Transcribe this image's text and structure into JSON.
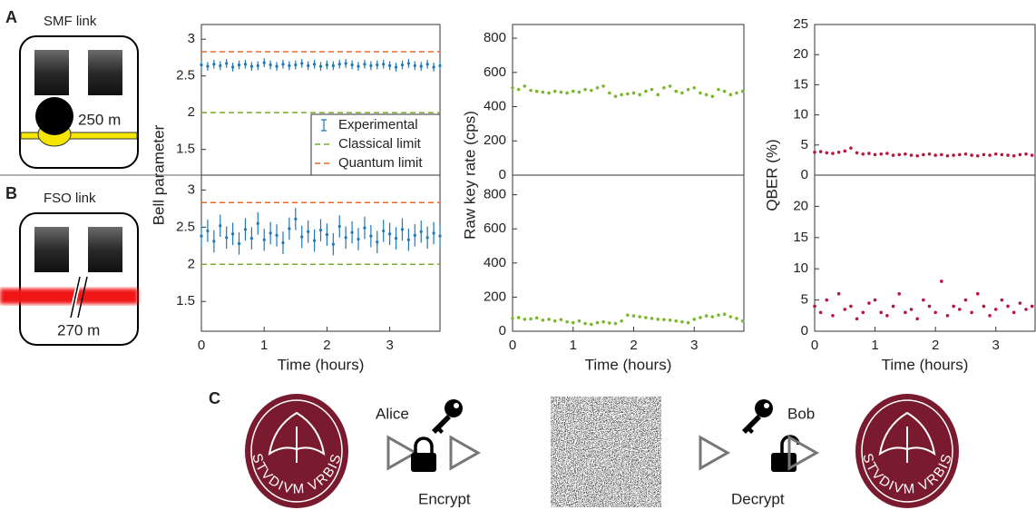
{
  "panels": {
    "A": {
      "letter": "A",
      "title": "SMF link",
      "distance": "250 m"
    },
    "B": {
      "letter": "B",
      "title": "FSO link",
      "distance": "270 m"
    },
    "C": {
      "letter": "C",
      "alice": "Alice",
      "bob": "Bob",
      "encrypt": "Encrypt",
      "decrypt": "Decrypt",
      "emblem_motto": "STVDIVM VRBIS"
    }
  },
  "chart_data": [
    {
      "type": "errorbar",
      "ylabel": "Bell parameter",
      "xlim": [
        0,
        3.8
      ],
      "ylim": [
        1.15,
        3.2
      ],
      "yticks": [
        1.5,
        2,
        2.5,
        3
      ],
      "legend": "lower right",
      "series": [
        {
          "name": "Experimental",
          "color": "#1f77b4",
          "x": [
            0,
            0.1,
            0.2,
            0.3,
            0.4,
            0.5,
            0.6,
            0.7,
            0.8,
            0.9,
            1,
            1.1,
            1.2,
            1.3,
            1.4,
            1.5,
            1.6,
            1.7,
            1.8,
            1.9,
            2,
            2.1,
            2.2,
            2.3,
            2.4,
            2.5,
            2.6,
            2.7,
            2.8,
            2.9,
            3,
            3.1,
            3.2,
            3.3,
            3.4,
            3.5,
            3.6,
            3.7,
            3.8
          ],
          "values": [
            2.65,
            2.63,
            2.66,
            2.64,
            2.67,
            2.62,
            2.65,
            2.66,
            2.63,
            2.64,
            2.68,
            2.65,
            2.63,
            2.66,
            2.64,
            2.65,
            2.67,
            2.64,
            2.66,
            2.63,
            2.65,
            2.64,
            2.66,
            2.67,
            2.65,
            2.63,
            2.66,
            2.64,
            2.65,
            2.66,
            2.64,
            2.62,
            2.65,
            2.67,
            2.64,
            2.63,
            2.66,
            2.62,
            2.64
          ],
          "errors": [
            0.06,
            0.06,
            0.06,
            0.06,
            0.06,
            0.06,
            0.06,
            0.06,
            0.06,
            0.06,
            0.06,
            0.06,
            0.06,
            0.06,
            0.06,
            0.06,
            0.06,
            0.06,
            0.06,
            0.06,
            0.06,
            0.06,
            0.06,
            0.06,
            0.06,
            0.06,
            0.06,
            0.06,
            0.06,
            0.06,
            0.06,
            0.06,
            0.06,
            0.06,
            0.06,
            0.06,
            0.06,
            0.06,
            0.06
          ]
        },
        {
          "name": "Classical limit",
          "color": "#77ac30",
          "x": [
            0,
            3.8
          ],
          "values": [
            2,
            2
          ]
        },
        {
          "name": "Quantum limit",
          "color": "#e8692a",
          "x": [
            0,
            3.8
          ],
          "values": [
            2.83,
            2.83
          ]
        }
      ]
    },
    {
      "type": "errorbar",
      "xlabel": "Time (hours)",
      "xlim": [
        0,
        3.8
      ],
      "ylim": [
        1.1,
        3.2
      ],
      "yticks": [
        1.5,
        2,
        2.5,
        3
      ],
      "xticks": [
        0,
        1,
        2,
        3
      ],
      "series": [
        {
          "color": "#1f77b4",
          "x": [
            0,
            0.1,
            0.2,
            0.3,
            0.4,
            0.5,
            0.6,
            0.7,
            0.8,
            0.9,
            1,
            1.1,
            1.2,
            1.3,
            1.4,
            1.5,
            1.6,
            1.7,
            1.8,
            1.9,
            2,
            2.1,
            2.2,
            2.3,
            2.4,
            2.5,
            2.6,
            2.7,
            2.8,
            2.9,
            3,
            3.1,
            3.2,
            3.3,
            3.4,
            3.5,
            3.6,
            3.7,
            3.8
          ],
          "values": [
            2.38,
            2.45,
            2.31,
            2.52,
            2.36,
            2.41,
            2.28,
            2.47,
            2.35,
            2.55,
            2.33,
            2.42,
            2.39,
            2.29,
            2.48,
            2.61,
            2.37,
            2.44,
            2.32,
            2.46,
            2.4,
            2.27,
            2.51,
            2.36,
            2.43,
            2.34,
            2.49,
            2.38,
            2.3,
            2.45,
            2.41,
            2.35,
            2.47,
            2.33,
            2.39,
            2.44,
            2.36,
            2.42,
            2.38
          ],
          "errors": [
            0.15,
            0.15,
            0.15,
            0.15,
            0.15,
            0.15,
            0.15,
            0.15,
            0.15,
            0.15,
            0.15,
            0.15,
            0.15,
            0.15,
            0.15,
            0.15,
            0.15,
            0.15,
            0.15,
            0.15,
            0.15,
            0.15,
            0.15,
            0.15,
            0.15,
            0.15,
            0.15,
            0.15,
            0.15,
            0.15,
            0.15,
            0.15,
            0.15,
            0.15,
            0.15,
            0.15,
            0.15,
            0.15,
            0.15
          ]
        },
        {
          "color": "#77ac30",
          "x": [
            0,
            3.8
          ],
          "values": [
            2,
            2
          ]
        },
        {
          "color": "#e8692a",
          "x": [
            0,
            3.8
          ],
          "values": [
            2.83,
            2.83
          ]
        }
      ]
    },
    {
      "type": "scatter",
      "ylabel": "Raw key rate (cps)",
      "xlim": [
        0,
        3.82
      ],
      "ylim": [
        0,
        880
      ],
      "yticks": [
        0,
        200,
        400,
        600,
        800
      ],
      "series": [
        {
          "color": "#7cb82f",
          "x": [
            0,
            0.1,
            0.2,
            0.3,
            0.4,
            0.5,
            0.6,
            0.7,
            0.8,
            0.9,
            1,
            1.1,
            1.2,
            1.3,
            1.4,
            1.5,
            1.6,
            1.7,
            1.8,
            1.9,
            2,
            2.1,
            2.2,
            2.3,
            2.4,
            2.5,
            2.6,
            2.7,
            2.8,
            2.9,
            3,
            3.1,
            3.2,
            3.3,
            3.4,
            3.5,
            3.6,
            3.7,
            3.8
          ],
          "values": [
            510,
            500,
            520,
            495,
            490,
            485,
            480,
            490,
            485,
            480,
            490,
            485,
            500,
            495,
            510,
            520,
            480,
            460,
            470,
            475,
            480,
            470,
            490,
            500,
            470,
            510,
            520,
            490,
            480,
            500,
            510,
            480,
            470,
            460,
            500,
            490,
            470,
            480,
            490
          ]
        }
      ]
    },
    {
      "type": "scatter",
      "xlabel": "Time (hours)",
      "xlim": [
        0,
        3.82
      ],
      "ylim": [
        0,
        915
      ],
      "yticks": [
        0,
        200,
        400,
        600,
        800
      ],
      "xticks": [
        0,
        1,
        2,
        3
      ],
      "series": [
        {
          "color": "#7cb82f",
          "x": [
            0,
            0.1,
            0.2,
            0.3,
            0.4,
            0.5,
            0.6,
            0.7,
            0.8,
            0.9,
            1,
            1.1,
            1.2,
            1.3,
            1.4,
            1.5,
            1.6,
            1.7,
            1.8,
            1.9,
            2,
            2.1,
            2.2,
            2.3,
            2.4,
            2.5,
            2.6,
            2.7,
            2.8,
            2.9,
            3,
            3.1,
            3.2,
            3.3,
            3.4,
            3.5,
            3.6,
            3.7,
            3.8
          ],
          "values": [
            75,
            80,
            70,
            72,
            78,
            65,
            70,
            60,
            68,
            55,
            50,
            60,
            45,
            40,
            50,
            55,
            48,
            45,
            60,
            95,
            90,
            85,
            80,
            75,
            70,
            68,
            65,
            60,
            55,
            50,
            70,
            80,
            90,
            85,
            95,
            100,
            85,
            75,
            60
          ]
        }
      ]
    },
    {
      "type": "scatter",
      "ylabel": "QBER (%)",
      "xlim": [
        0,
        3.65
      ],
      "ylim": [
        0,
        25
      ],
      "yticks": [
        0,
        5,
        10,
        15,
        20,
        25
      ],
      "series": [
        {
          "color": "#b5173f",
          "x": [
            0,
            0.1,
            0.2,
            0.3,
            0.4,
            0.5,
            0.6,
            0.7,
            0.8,
            0.9,
            1,
            1.1,
            1.2,
            1.3,
            1.4,
            1.5,
            1.6,
            1.7,
            1.8,
            1.9,
            2,
            2.1,
            2.2,
            2.3,
            2.4,
            2.5,
            2.6,
            2.7,
            2.8,
            2.9,
            3,
            3.1,
            3.2,
            3.3,
            3.4,
            3.5,
            3.6
          ],
          "values": [
            3.8,
            3.9,
            3.7,
            3.6,
            3.8,
            4.0,
            4.5,
            3.7,
            3.5,
            3.6,
            3.4,
            3.5,
            3.6,
            3.3,
            3.4,
            3.5,
            3.3,
            3.2,
            3.4,
            3.5,
            3.3,
            3.4,
            3.2,
            3.3,
            3.4,
            3.5,
            3.3,
            3.2,
            3.4,
            3.3,
            3.5,
            3.4,
            3.3,
            3.2,
            3.4,
            3.5,
            3.3
          ]
        }
      ]
    },
    {
      "type": "scatter",
      "xlabel": "Time (hours)",
      "xlim": [
        0,
        3.65
      ],
      "ylim": [
        0,
        25
      ],
      "yticks": [
        0,
        5,
        10,
        15,
        20
      ],
      "xticks": [
        0,
        1,
        2,
        3
      ],
      "series": [
        {
          "color": "#b5173f",
          "x": [
            0,
            0.1,
            0.2,
            0.3,
            0.4,
            0.5,
            0.6,
            0.7,
            0.8,
            0.9,
            1,
            1.1,
            1.2,
            1.3,
            1.4,
            1.5,
            1.6,
            1.7,
            1.8,
            1.9,
            2,
            2.1,
            2.2,
            2.3,
            2.4,
            2.5,
            2.6,
            2.7,
            2.8,
            2.9,
            3,
            3.1,
            3.2,
            3.3,
            3.4,
            3.5,
            3.6
          ],
          "values": [
            4,
            3,
            5,
            2.5,
            6,
            3.5,
            4,
            2,
            3,
            4.5,
            5,
            3,
            2.5,
            4,
            6,
            3,
            3.5,
            2,
            5,
            4,
            3,
            8,
            2.5,
            4,
            3.5,
            5,
            3,
            6,
            4,
            2.5,
            3.5,
            5,
            4,
            3,
            4.5,
            3.5,
            4
          ]
        }
      ]
    }
  ]
}
